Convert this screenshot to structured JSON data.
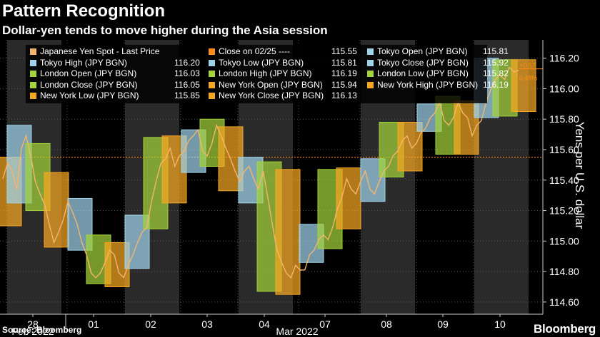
{
  "title": "Pattern Recognition",
  "subtitle": "Dollar-yen tends to move higher during the Asia session",
  "source": "Source: Bloomberg",
  "brand": "Bloomberg",
  "colors": {
    "background": "#000000",
    "tokyo": "#9fd3ea",
    "london": "#a4d33b",
    "newyork": "#f5a623",
    "spot": "#f6b56c",
    "close_line": "#ff8c1a",
    "grid": "#555555",
    "shade": "#2a2a2a"
  },
  "chart_data": {
    "type": "line",
    "title": "Pattern Recognition",
    "ylabel": "Yens per U.S. dollar",
    "ylim": [
      114.52,
      116.32
    ],
    "yticks": [
      114.6,
      114.8,
      115.0,
      115.2,
      115.4,
      115.6,
      115.8,
      116.0,
      116.2
    ],
    "ytick_labels": [
      "114.60",
      "114.80",
      "115.00",
      "115.20",
      "115.40",
      "115.60",
      "115.80",
      "116.00",
      "116.20"
    ],
    "grid": true,
    "legend_position": "top-left",
    "day_labels": [
      "28",
      "01",
      "02",
      "03",
      "04",
      "07",
      "08",
      "09",
      "10"
    ],
    "month_labels": [
      "Feb 2022",
      "Mar 2022"
    ],
    "close_on_0225": 115.55,
    "change_label": "+0.57",
    "change_pct_label": "0.49%",
    "legend": [
      {
        "label": "Japanese Yen Spot - Last Price",
        "value": "",
        "color": "#f6b56c"
      },
      {
        "label": "Close on 02/25 ----",
        "value": "115.55",
        "color": "#ff8c1a"
      },
      {
        "label": "Tokyo Open (JPY BGN)",
        "value": "115.81",
        "color": "#9fd3ea"
      },
      {
        "label": "Tokyo High (JPY BGN)",
        "value": "116.20",
        "color": "#9fd3ea"
      },
      {
        "label": "Tokyo Low (JPY BGN)",
        "value": "115.81",
        "color": "#9fd3ea"
      },
      {
        "label": "Tokyo Close (JPY BGN)",
        "value": "115.92",
        "color": "#9fd3ea"
      },
      {
        "label": "London Open (JPY BGN)",
        "value": "116.03",
        "color": "#a4d33b"
      },
      {
        "label": "London High (JPY BGN)",
        "value": "116.19",
        "color": "#a4d33b"
      },
      {
        "label": "London Low (JPY BGN)",
        "value": "115.82",
        "color": "#a4d33b"
      },
      {
        "label": "London Close (JPY BGN)",
        "value": "116.05",
        "color": "#a4d33b"
      },
      {
        "label": "New York Open (JPY BGN)",
        "value": "115.94",
        "color": "#f5a623"
      },
      {
        "label": "New York High (JPY BGN)",
        "value": "116.19",
        "color": "#f5a623"
      },
      {
        "label": "New York Low (JPY BGN)",
        "value": "115.85",
        "color": "#f5a623"
      },
      {
        "label": "New York Close (JPY BGN)",
        "value": "116.13",
        "color": "#f5a623"
      }
    ],
    "sessions": [
      {
        "day": "25",
        "session": "newyork",
        "low": 115.1,
        "high": 115.55
      },
      {
        "day": "28",
        "session": "tokyo",
        "low": 115.25,
        "high": 115.76
      },
      {
        "day": "28",
        "session": "london",
        "low": 115.2,
        "high": 115.64
      },
      {
        "day": "28",
        "session": "newyork",
        "low": 114.96,
        "high": 115.45
      },
      {
        "day": "01",
        "session": "tokyo",
        "low": 114.94,
        "high": 115.28
      },
      {
        "day": "01",
        "session": "london",
        "low": 114.72,
        "high": 115.04
      },
      {
        "day": "01",
        "session": "newyork",
        "low": 114.7,
        "high": 114.99
      },
      {
        "day": "02",
        "session": "tokyo",
        "low": 114.82,
        "high": 115.17
      },
      {
        "day": "02",
        "session": "london",
        "low": 115.08,
        "high": 115.68
      },
      {
        "day": "02",
        "session": "newyork",
        "low": 115.25,
        "high": 115.69
      },
      {
        "day": "03",
        "session": "tokyo",
        "low": 115.45,
        "high": 115.73
      },
      {
        "day": "03",
        "session": "london",
        "low": 115.49,
        "high": 115.8
      },
      {
        "day": "03",
        "session": "newyork",
        "low": 115.33,
        "high": 115.75
      },
      {
        "day": "04",
        "session": "tokyo",
        "low": 115.25,
        "high": 115.55
      },
      {
        "day": "04",
        "session": "london",
        "low": 114.67,
        "high": 115.52
      },
      {
        "day": "04",
        "session": "newyork",
        "low": 114.65,
        "high": 115.47
      },
      {
        "day": "07",
        "session": "tokyo",
        "low": 114.86,
        "high": 115.11
      },
      {
        "day": "07",
        "session": "london",
        "low": 114.95,
        "high": 115.47
      },
      {
        "day": "07",
        "session": "newyork",
        "low": 115.08,
        "high": 115.48
      },
      {
        "day": "08",
        "session": "tokyo",
        "low": 115.26,
        "high": 115.54
      },
      {
        "day": "08",
        "session": "london",
        "low": 115.42,
        "high": 115.78
      },
      {
        "day": "08",
        "session": "newyork",
        "low": 115.46,
        "high": 115.78
      },
      {
        "day": "09",
        "session": "tokyo",
        "low": 115.72,
        "high": 115.9
      },
      {
        "day": "09",
        "session": "london",
        "low": 115.57,
        "high": 115.95
      },
      {
        "day": "09",
        "session": "newyork",
        "low": 115.57,
        "high": 115.92
      },
      {
        "day": "10",
        "session": "tokyo",
        "low": 115.81,
        "high": 116.2
      },
      {
        "day": "10",
        "session": "london",
        "low": 115.82,
        "high": 116.19
      },
      {
        "day": "10",
        "session": "newyork",
        "low": 115.85,
        "high": 116.19
      }
    ],
    "spot_series": [
      115.4,
      115.52,
      115.45,
      115.35,
      115.6,
      115.7,
      115.55,
      115.4,
      115.3,
      115.25,
      115.1,
      115.0,
      115.05,
      115.15,
      115.25,
      115.2,
      115.1,
      115.0,
      114.9,
      114.8,
      114.75,
      114.8,
      114.85,
      114.95,
      114.9,
      114.8,
      114.75,
      114.85,
      114.9,
      115.0,
      115.05,
      115.1,
      115.25,
      115.4,
      115.5,
      115.55,
      115.6,
      115.5,
      115.55,
      115.6,
      115.65,
      115.7,
      115.72,
      115.6,
      115.55,
      115.65,
      115.75,
      115.7,
      115.6,
      115.55,
      115.45,
      115.4,
      115.45,
      115.5,
      115.4,
      115.35,
      115.45,
      115.3,
      115.1,
      114.95,
      114.85,
      114.8,
      114.75,
      114.85,
      114.8,
      114.82,
      114.9,
      114.95,
      115.0,
      115.05,
      115.0,
      115.1,
      115.2,
      115.3,
      115.4,
      115.35,
      115.3,
      115.4,
      115.45,
      115.35,
      115.3,
      115.4,
      115.45,
      115.5,
      115.55,
      115.6,
      115.65,
      115.7,
      115.6,
      115.65,
      115.7,
      115.75,
      115.8,
      115.85,
      115.9,
      115.8,
      115.75,
      115.82,
      115.9,
      115.85,
      115.8,
      115.7,
      115.75,
      115.8,
      115.9,
      116.0,
      116.05,
      116.1,
      116.05,
      116.15,
      116.1,
      116.13
    ]
  }
}
